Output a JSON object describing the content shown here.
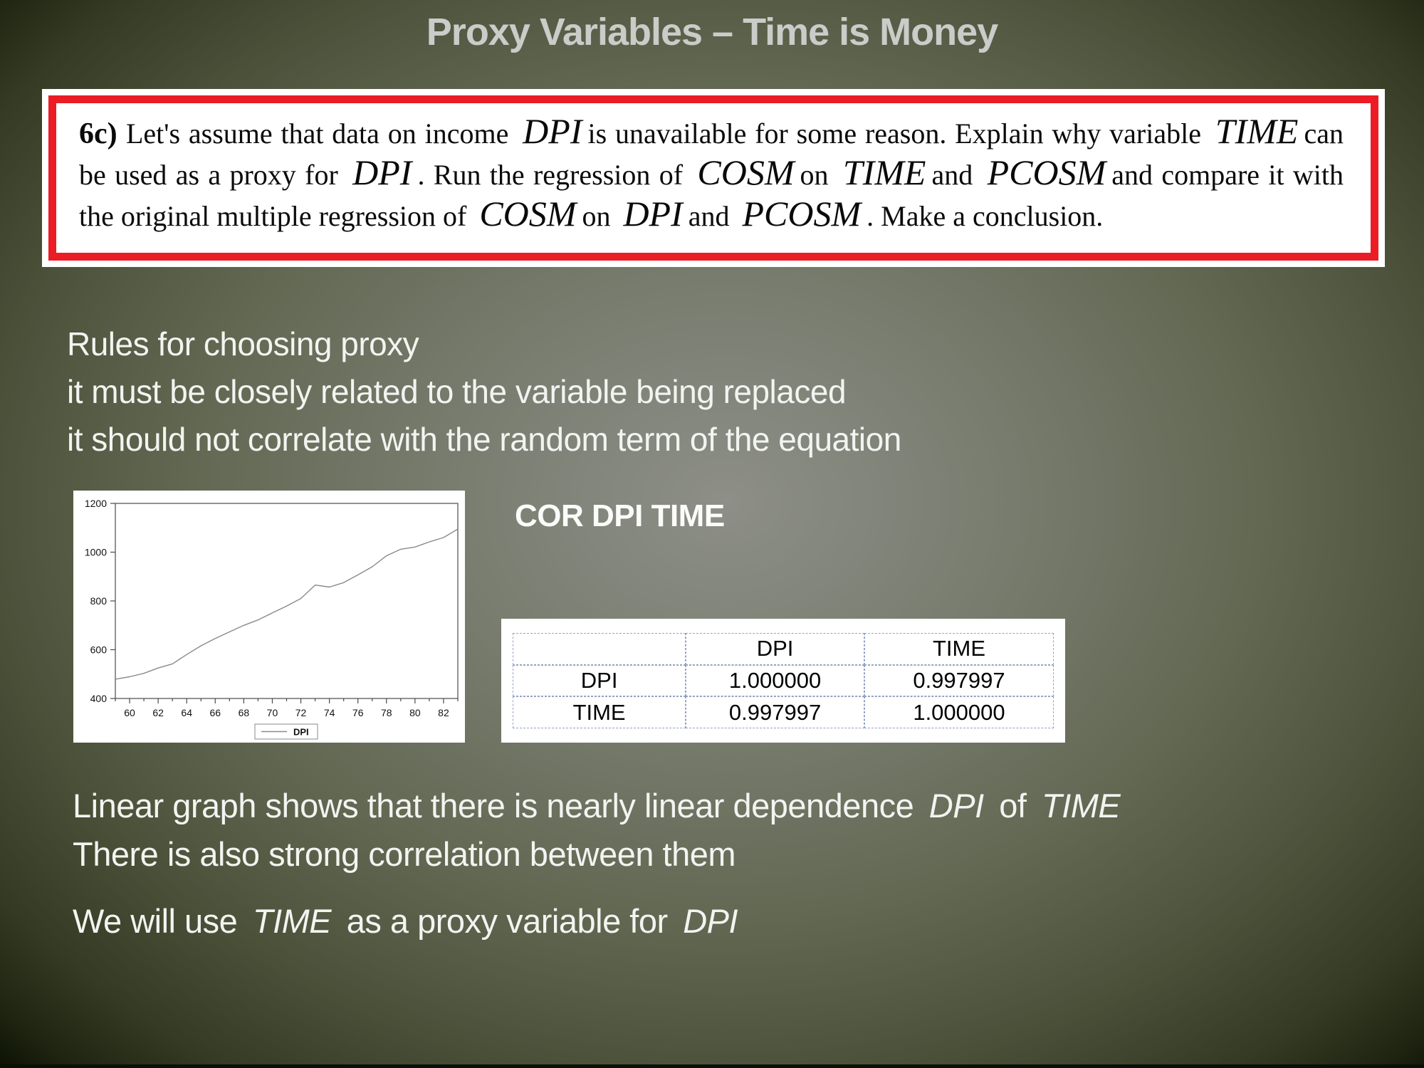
{
  "title": "Proxy Variables – Time is Money",
  "problem_box": {
    "segments": [
      {
        "t": "6c) ",
        "s": "b"
      },
      {
        "t": "Let's assume that data on income",
        "s": "n"
      },
      {
        "t": "DPI",
        "s": "v"
      },
      {
        "t": "is unavailable for some reason. Explain why variable",
        "s": "n"
      },
      {
        "t": "TIME",
        "s": "v"
      },
      {
        "t": "can be used as a proxy for",
        "s": "n"
      },
      {
        "t": "DPI",
        "s": "v"
      },
      {
        "t": ". Run the regression of",
        "s": "n"
      },
      {
        "t": "COSM",
        "s": "v"
      },
      {
        "t": "on",
        "s": "n"
      },
      {
        "t": "TIME",
        "s": "v"
      },
      {
        "t": "and",
        "s": "n"
      },
      {
        "t": "PCOSM",
        "s": "v"
      },
      {
        "t": "and compare it with the original multiple regression of",
        "s": "n"
      },
      {
        "t": "COSM",
        "s": "v"
      },
      {
        "t": "on",
        "s": "n"
      },
      {
        "t": "DPI",
        "s": "v"
      },
      {
        "t": "and",
        "s": "n"
      },
      {
        "t": "PCOSM",
        "s": "v"
      },
      {
        "t": ". Make a conclusion.",
        "s": "n"
      }
    ]
  },
  "rules": {
    "lines": [
      "Rules for choosing proxy",
      "it must be closely related to the variable being replaced",
      "it should not correlate with the random term of the equation"
    ]
  },
  "cor_heading": "COR DPI TIME",
  "table": {
    "headers": [
      "",
      "DPI",
      "TIME"
    ],
    "rows": [
      [
        "DPI",
        "1.000000",
        "0.997997"
      ],
      [
        "TIME",
        "0.997997",
        "1.000000"
      ]
    ]
  },
  "conclusions": {
    "line1": [
      {
        "t": "Linear graph shows that there is nearly linear dependence",
        "s": "n"
      },
      {
        "t": "DPI",
        "s": "i"
      },
      {
        "t": " of",
        "s": "n"
      },
      {
        "t": "TIME",
        "s": "i"
      }
    ],
    "line2": [
      {
        "t": "There is also strong correlation between them",
        "s": "n"
      }
    ],
    "line3": [
      {
        "t": "We will use",
        "s": "n"
      },
      {
        "t": "TIME",
        "s": "i"
      },
      {
        "t": " as a proxy variable for",
        "s": "n"
      },
      {
        "t": "DPI",
        "s": "i"
      }
    ]
  },
  "chart_data": {
    "type": "line",
    "title": "",
    "xlabel": "",
    "ylabel": "",
    "x": [
      59,
      60,
      61,
      62,
      63,
      64,
      65,
      66,
      67,
      68,
      69,
      70,
      71,
      72,
      73,
      74,
      75,
      76,
      77,
      78,
      79,
      80,
      81,
      82,
      83
    ],
    "series": [
      {
        "name": "DPI",
        "values": [
          479,
          489,
          503,
          525,
          542,
          580,
          616,
          646,
          673,
          700,
          722,
          751,
          779,
          810,
          865,
          857,
          875,
          907,
          940,
          985,
          1012,
          1021,
          1042,
          1060,
          1095
        ]
      }
    ],
    "xticks": [
      60,
      62,
      64,
      66,
      68,
      70,
      72,
      74,
      76,
      78,
      80,
      82
    ],
    "yticks": [
      400,
      600,
      800,
      1000,
      1200
    ],
    "xlim": [
      59,
      83
    ],
    "ylim": [
      400,
      1200
    ],
    "grid": false,
    "legend_position": "bottom"
  },
  "colors": {
    "accent_red": "#ec1c24",
    "slide_text": "#f3f4f1",
    "title_gray": "#c9ccc8",
    "table_dash": "#94a3c4",
    "chart_line": "#8a8a8a",
    "chart_frame": "#4a4a4a"
  }
}
